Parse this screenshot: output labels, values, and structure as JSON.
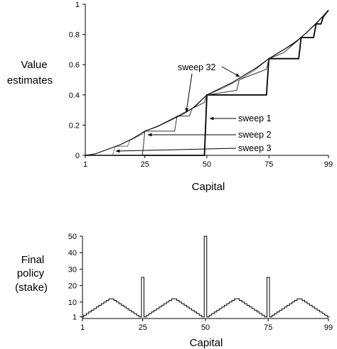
{
  "chart_data": [
    {
      "type": "line",
      "ylabel_lines": [
        "Value",
        "estimates"
      ],
      "xlabel": "Capital",
      "xlim": [
        1,
        99
      ],
      "ylim": [
        0,
        1
      ],
      "x_ticks": [
        1,
        25,
        50,
        75,
        99
      ],
      "y_ticks": [
        0,
        0.2,
        0.4,
        0.6,
        0.8,
        1
      ],
      "y_tick_labels": [
        "0",
        "0.2",
        "0.4",
        "0.6",
        "0.8",
        "1"
      ],
      "series": [
        {
          "name": "sweep 1",
          "points": [
            [
              1,
              0
            ],
            [
              49,
              0
            ],
            [
              50,
              0.4
            ],
            [
              74,
              0.4
            ],
            [
              75,
              0.64
            ],
            [
              87,
              0.64
            ],
            [
              88,
              0.78
            ],
            [
              93,
              0.78
            ],
            [
              94,
              0.87
            ],
            [
              96,
              0.87
            ],
            [
              97,
              0.92
            ],
            [
              99,
              0.96
            ]
          ]
        },
        {
          "name": "sweep 2",
          "points": [
            [
              1,
              0
            ],
            [
              24,
              0
            ],
            [
              25,
              0.16
            ],
            [
              37,
              0.16
            ],
            [
              38,
              0.26
            ],
            [
              43,
              0.26
            ],
            [
              44,
              0.31
            ],
            [
              49,
              0.35
            ],
            [
              50,
              0.4
            ],
            [
              62,
              0.43
            ],
            [
              63,
              0.5
            ],
            [
              74,
              0.57
            ],
            [
              75,
              0.64
            ],
            [
              81,
              0.68
            ],
            [
              88,
              0.78
            ],
            [
              94,
              0.87
            ],
            [
              99,
              0.96
            ]
          ]
        },
        {
          "name": "sweep 3",
          "points": [
            [
              1,
              0
            ],
            [
              12,
              0
            ],
            [
              13,
              0.06
            ],
            [
              18,
              0.06
            ],
            [
              19,
              0.1
            ],
            [
              24,
              0.14
            ],
            [
              25,
              0.16
            ],
            [
              31,
              0.2
            ],
            [
              38,
              0.26
            ],
            [
              44,
              0.31
            ],
            [
              50,
              0.4
            ],
            [
              56,
              0.44
            ],
            [
              63,
              0.5
            ],
            [
              69,
              0.56
            ],
            [
              75,
              0.64
            ],
            [
              81,
              0.7
            ],
            [
              88,
              0.78
            ],
            [
              94,
              0.87
            ],
            [
              99,
              0.96
            ]
          ]
        },
        {
          "name": "sweep 32",
          "points": [
            [
              1,
              0
            ],
            [
              5,
              0.01
            ],
            [
              10,
              0.04
            ],
            [
              15,
              0.07
            ],
            [
              20,
              0.11
            ],
            [
              25,
              0.16
            ],
            [
              30,
              0.19
            ],
            [
              35,
              0.23
            ],
            [
              40,
              0.27
            ],
            [
              45,
              0.32
            ],
            [
              50,
              0.4
            ],
            [
              55,
              0.44
            ],
            [
              60,
              0.48
            ],
            [
              65,
              0.53
            ],
            [
              70,
              0.58
            ],
            [
              75,
              0.64
            ],
            [
              80,
              0.69
            ],
            [
              85,
              0.74
            ],
            [
              90,
              0.81
            ],
            [
              95,
              0.89
            ],
            [
              99,
              0.96
            ]
          ]
        }
      ],
      "annotations": [
        "sweep 32",
        "sweep 1",
        "sweep 2",
        "sweep 3"
      ]
    },
    {
      "type": "line",
      "ylabel_lines": [
        "Final",
        "policy",
        "(stake)"
      ],
      "xlabel": "Capital",
      "xlim": [
        1,
        99
      ],
      "ylim": [
        0,
        50
      ],
      "x_ticks": [
        1,
        25,
        50,
        75,
        99
      ],
      "y_ticks": [
        1,
        10,
        20,
        30,
        40,
        50
      ],
      "y_tick_labels": [
        "1",
        "10",
        "20",
        "30",
        "40",
        "50"
      ],
      "series": [
        {
          "name": "",
          "x": [
            1,
            2,
            3,
            4,
            5,
            6,
            7,
            8,
            9,
            10,
            11,
            12,
            13,
            14,
            15,
            16,
            17,
            18,
            19,
            20,
            21,
            22,
            23,
            24,
            25,
            26,
            27,
            28,
            29,
            30,
            31,
            32,
            33,
            34,
            35,
            36,
            37,
            38,
            39,
            40,
            41,
            42,
            43,
            44,
            45,
            46,
            47,
            48,
            49,
            50,
            51,
            52,
            53,
            54,
            55,
            56,
            57,
            58,
            59,
            60,
            61,
            62,
            63,
            64,
            65,
            66,
            67,
            68,
            69,
            70,
            71,
            72,
            73,
            74,
            75,
            76,
            77,
            78,
            79,
            80,
            81,
            82,
            83,
            84,
            85,
            86,
            87,
            88,
            89,
            90,
            91,
            92,
            93,
            94,
            95,
            96,
            97,
            98,
            99
          ],
          "values": [
            1,
            2,
            3,
            4,
            5,
            6,
            7,
            8,
            9,
            10,
            11,
            12,
            12,
            11,
            10,
            9,
            8,
            7,
            6,
            5,
            4,
            3,
            2,
            1,
            25,
            1,
            2,
            3,
            4,
            5,
            6,
            7,
            8,
            9,
            10,
            11,
            12,
            12,
            11,
            10,
            9,
            8,
            7,
            6,
            5,
            4,
            3,
            2,
            1,
            50,
            1,
            2,
            3,
            4,
            5,
            6,
            7,
            8,
            9,
            10,
            11,
            12,
            12,
            11,
            10,
            9,
            8,
            7,
            6,
            5,
            4,
            3,
            2,
            1,
            25,
            1,
            2,
            3,
            4,
            5,
            6,
            7,
            8,
            9,
            10,
            11,
            12,
            12,
            11,
            10,
            9,
            8,
            7,
            6,
            5,
            4,
            3,
            2,
            1
          ]
        }
      ]
    }
  ]
}
